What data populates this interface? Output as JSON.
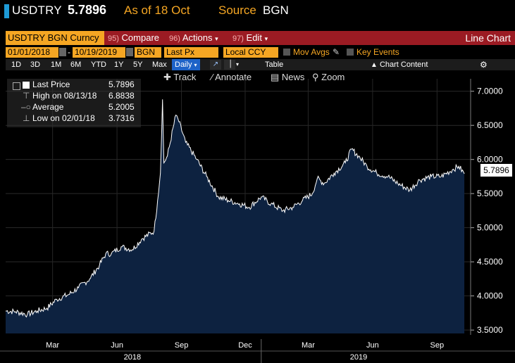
{
  "header": {
    "ticker": "USDTRY",
    "price": "5.7896",
    "as_of": "As of 18 Oct",
    "source_label": "Source",
    "source_value": "BGN"
  },
  "function_bar": {
    "security": "USDTRY BGN Curncy",
    "compare_num": "95)",
    "compare": "Compare",
    "actions_num": "96)",
    "actions": "Actions",
    "edit_num": "97)",
    "edit": "Edit",
    "view": "Line Chart"
  },
  "params": {
    "start_date": "01/01/2018",
    "end_date": "10/19/2019",
    "source": "BGN",
    "field": "Last Px",
    "currency": "Local CCY",
    "mov_avgs": "Mov Avgs",
    "key_events": "Key Events"
  },
  "periods": [
    "1D",
    "3D",
    "1M",
    "6M",
    "YTD",
    "1Y",
    "5Y",
    "Max"
  ],
  "frequency": "Daily",
  "table_label": "Table",
  "chart_content_label": "Chart Content",
  "tools": {
    "track": "Track",
    "annotate": "Annotate",
    "news": "News",
    "zoom": "Zoom"
  },
  "legend": {
    "last_label": "Last Price",
    "last_value": "5.7896",
    "high_label": "High on 08/13/18",
    "high_value": "6.8838",
    "avg_label": "Average",
    "avg_value": "5.2005",
    "low_label": "Low on 02/01/18",
    "low_value": "3.7316"
  },
  "colors": {
    "accent": "#f5a623",
    "function_bar": "#9b1b23",
    "area_fill": "#0d2240",
    "line": "#ffffff"
  },
  "chart_data": {
    "type": "area",
    "series": [
      {
        "name": "Last Price",
        "x": [
          "2018-01-01",
          "2018-01-15",
          "2018-02-01",
          "2018-02-15",
          "2018-03-01",
          "2018-03-15",
          "2018-04-01",
          "2018-04-15",
          "2018-05-01",
          "2018-05-15",
          "2018-05-24",
          "2018-06-01",
          "2018-06-15",
          "2018-07-01",
          "2018-07-15",
          "2018-08-01",
          "2018-08-06",
          "2018-08-10",
          "2018-08-13",
          "2018-08-15",
          "2018-08-20",
          "2018-09-01",
          "2018-09-04",
          "2018-09-15",
          "2018-10-01",
          "2018-10-15",
          "2018-11-01",
          "2018-11-15",
          "2018-12-01",
          "2018-12-15",
          "2019-01-01",
          "2019-01-15",
          "2019-02-01",
          "2019-02-15",
          "2019-03-01",
          "2019-03-15",
          "2019-03-22",
          "2019-04-01",
          "2019-04-15",
          "2019-05-01",
          "2019-05-10",
          "2019-05-20",
          "2019-06-01",
          "2019-06-15",
          "2019-07-01",
          "2019-07-15",
          "2019-08-01",
          "2019-08-15",
          "2019-09-01",
          "2019-09-15",
          "2019-10-01",
          "2019-10-10",
          "2019-10-18"
        ],
        "values": [
          3.78,
          3.77,
          3.73,
          3.78,
          3.82,
          3.95,
          4.02,
          4.12,
          4.25,
          4.45,
          4.62,
          4.62,
          4.72,
          4.68,
          4.84,
          4.95,
          5.4,
          5.8,
          6.88,
          5.95,
          6.05,
          6.65,
          6.6,
          6.25,
          6.0,
          5.75,
          5.45,
          5.4,
          5.35,
          5.3,
          5.45,
          5.35,
          5.25,
          5.3,
          5.4,
          5.5,
          5.72,
          5.65,
          5.8,
          5.95,
          6.15,
          6.05,
          5.9,
          5.8,
          5.75,
          5.65,
          5.55,
          5.7,
          5.75,
          5.75,
          5.85,
          5.9,
          5.79
        ]
      }
    ],
    "xlabel": "",
    "ylabel": "",
    "ylim": [
      3.45,
      7.1
    ],
    "y_ticks": [
      "7.0000",
      "6.5000",
      "6.0000",
      "5.5000",
      "5.0000",
      "4.5000",
      "4.0000",
      "3.5000"
    ],
    "x_ticks": [
      "Mar",
      "Jun",
      "Sep",
      "Dec",
      "Mar",
      "Jun",
      "Sep"
    ],
    "x_years": [
      "2018",
      "2019"
    ],
    "last_value_label": "5.7896",
    "grid": true
  }
}
